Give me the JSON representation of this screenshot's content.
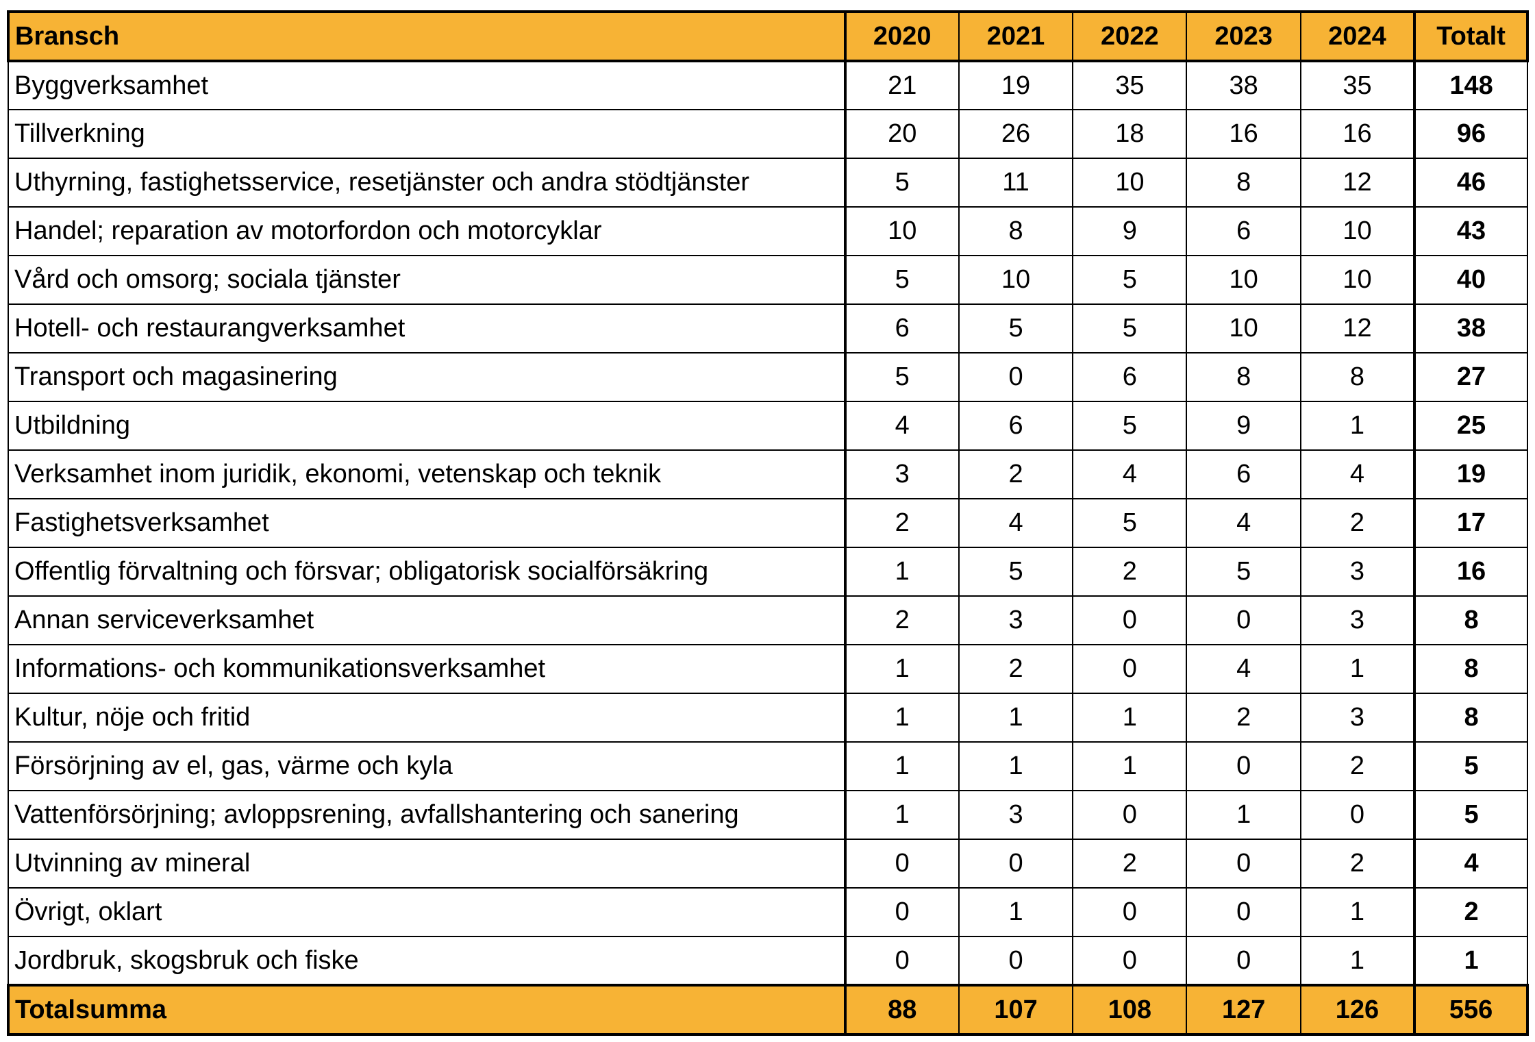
{
  "table": {
    "headers": [
      "Bransch",
      "2020",
      "2021",
      "2022",
      "2023",
      "2024",
      "Totalt"
    ],
    "rows": [
      [
        "Byggverksamhet",
        "21",
        "19",
        "35",
        "38",
        "35",
        "148"
      ],
      [
        "Tillverkning",
        "20",
        "26",
        "18",
        "16",
        "16",
        "96"
      ],
      [
        "Uthyrning, fastighetsservice, resetjänster och andra stödtjänster",
        "5",
        "11",
        "10",
        "8",
        "12",
        "46"
      ],
      [
        "Handel; reparation av motorfordon och motorcyklar",
        "10",
        "8",
        "9",
        "6",
        "10",
        "43"
      ],
      [
        "Vård och omsorg; sociala tjänster",
        "5",
        "10",
        "5",
        "10",
        "10",
        "40"
      ],
      [
        "Hotell- och restaurangverksamhet",
        "6",
        "5",
        "5",
        "10",
        "12",
        "38"
      ],
      [
        "Transport och magasinering",
        "5",
        "0",
        "6",
        "8",
        "8",
        "27"
      ],
      [
        "Utbildning",
        "4",
        "6",
        "5",
        "9",
        "1",
        "25"
      ],
      [
        "Verksamhet inom juridik, ekonomi, vetenskap och teknik",
        "3",
        "2",
        "4",
        "6",
        "4",
        "19"
      ],
      [
        "Fastighetsverksamhet",
        "2",
        "4",
        "5",
        "4",
        "2",
        "17"
      ],
      [
        "Offentlig förvaltning och försvar;  obligatorisk socialförsäkring",
        "1",
        "5",
        "2",
        "5",
        "3",
        "16"
      ],
      [
        "Annan serviceverksamhet",
        "2",
        "3",
        "0",
        "0",
        "3",
        "8"
      ],
      [
        "Informations- och kommunikationsverksamhet",
        "1",
        "2",
        "0",
        "4",
        "1",
        "8"
      ],
      [
        "Kultur, nöje och fritid",
        "1",
        "1",
        "1",
        "2",
        "3",
        "8"
      ],
      [
        "Försörjning av el, gas, värme och kyla",
        "1",
        "1",
        "1",
        "0",
        "2",
        "5"
      ],
      [
        "Vattenförsörjning; avloppsrening, avfallshantering och sanering",
        "1",
        "3",
        "0",
        "1",
        "0",
        "5"
      ],
      [
        "Utvinning av mineral",
        "0",
        "0",
        "2",
        "0",
        "2",
        "4"
      ],
      [
        "Övrigt, oklart",
        "0",
        "1",
        "0",
        "0",
        "1",
        "2"
      ],
      [
        "Jordbruk, skogsbruk och fiske",
        "0",
        "0",
        "0",
        "0",
        "1",
        "1"
      ]
    ],
    "footer": [
      "Totalsumma",
      "88",
      "107",
      "108",
      "127",
      "126",
      "556"
    ]
  },
  "colors": {
    "header_bg": "#f7b335",
    "border": "#000000"
  }
}
